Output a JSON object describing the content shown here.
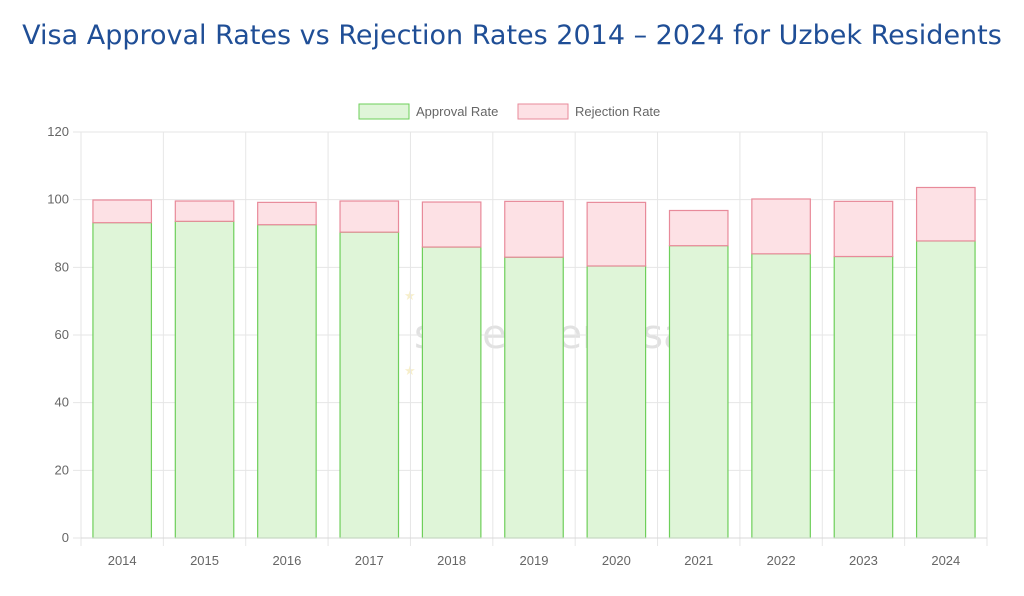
{
  "title": "Visa Approval Rates vs Rejection Rates 2014 – 2024 for Uzbek Residents",
  "watermark": {
    "text": "schengenvisa",
    "sub": "info"
  },
  "chart_data": {
    "type": "bar",
    "stacked": true,
    "categories": [
      "2014",
      "2015",
      "2016",
      "2017",
      "2018",
      "2019",
      "2020",
      "2021",
      "2022",
      "2023",
      "2024"
    ],
    "series": [
      {
        "name": "Approval Rate",
        "values": [
          93.2,
          93.6,
          92.6,
          90.4,
          86.0,
          83.0,
          80.4,
          86.4,
          84.0,
          83.2,
          87.8
        ],
        "fill": "#dff5d8",
        "stroke": "#6ecf5a"
      },
      {
        "name": "Rejection Rate",
        "values": [
          6.7,
          6.0,
          6.6,
          9.2,
          13.3,
          16.5,
          18.8,
          10.4,
          16.2,
          16.3,
          15.8
        ],
        "fill": "#fde1e5",
        "stroke": "#e88a9a"
      }
    ],
    "ylim": [
      0,
      120
    ],
    "yticks": [
      "0",
      "20",
      "40",
      "60",
      "80",
      "100",
      "120"
    ],
    "grid": true,
    "legend": "top-center"
  }
}
